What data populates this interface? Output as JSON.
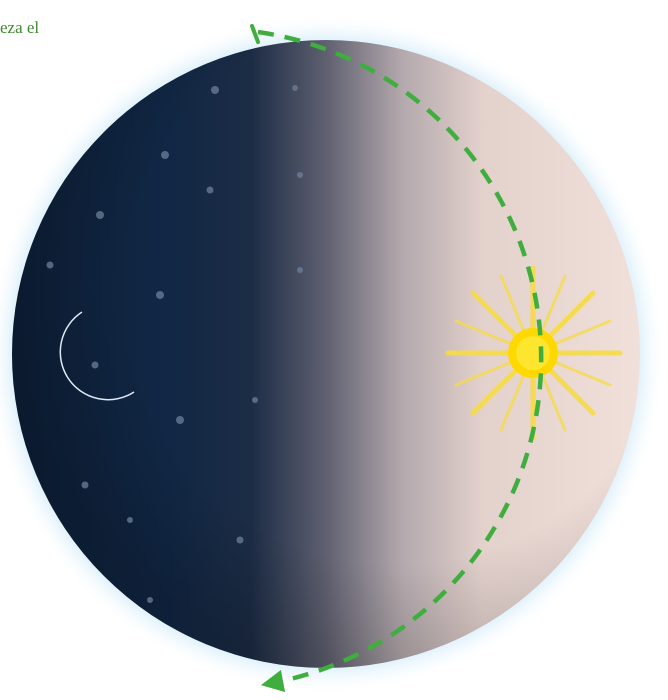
{
  "caption": {
    "text": "eza el"
  },
  "diagram": {
    "globe": {
      "night_color": "#0f2440",
      "day_color": "#efdcd6",
      "glow_color": "#bfe3f5"
    },
    "moon": {
      "icon": "crescent-moon-icon",
      "color": "#ffffff"
    },
    "sun": {
      "icon": "sun-icon",
      "core_color": "#ffd800",
      "ray_color": "#f7dc45"
    },
    "cycle_arrow": {
      "icon": "dashed-clockwise-arrow",
      "color": "#3fae3f"
    }
  }
}
